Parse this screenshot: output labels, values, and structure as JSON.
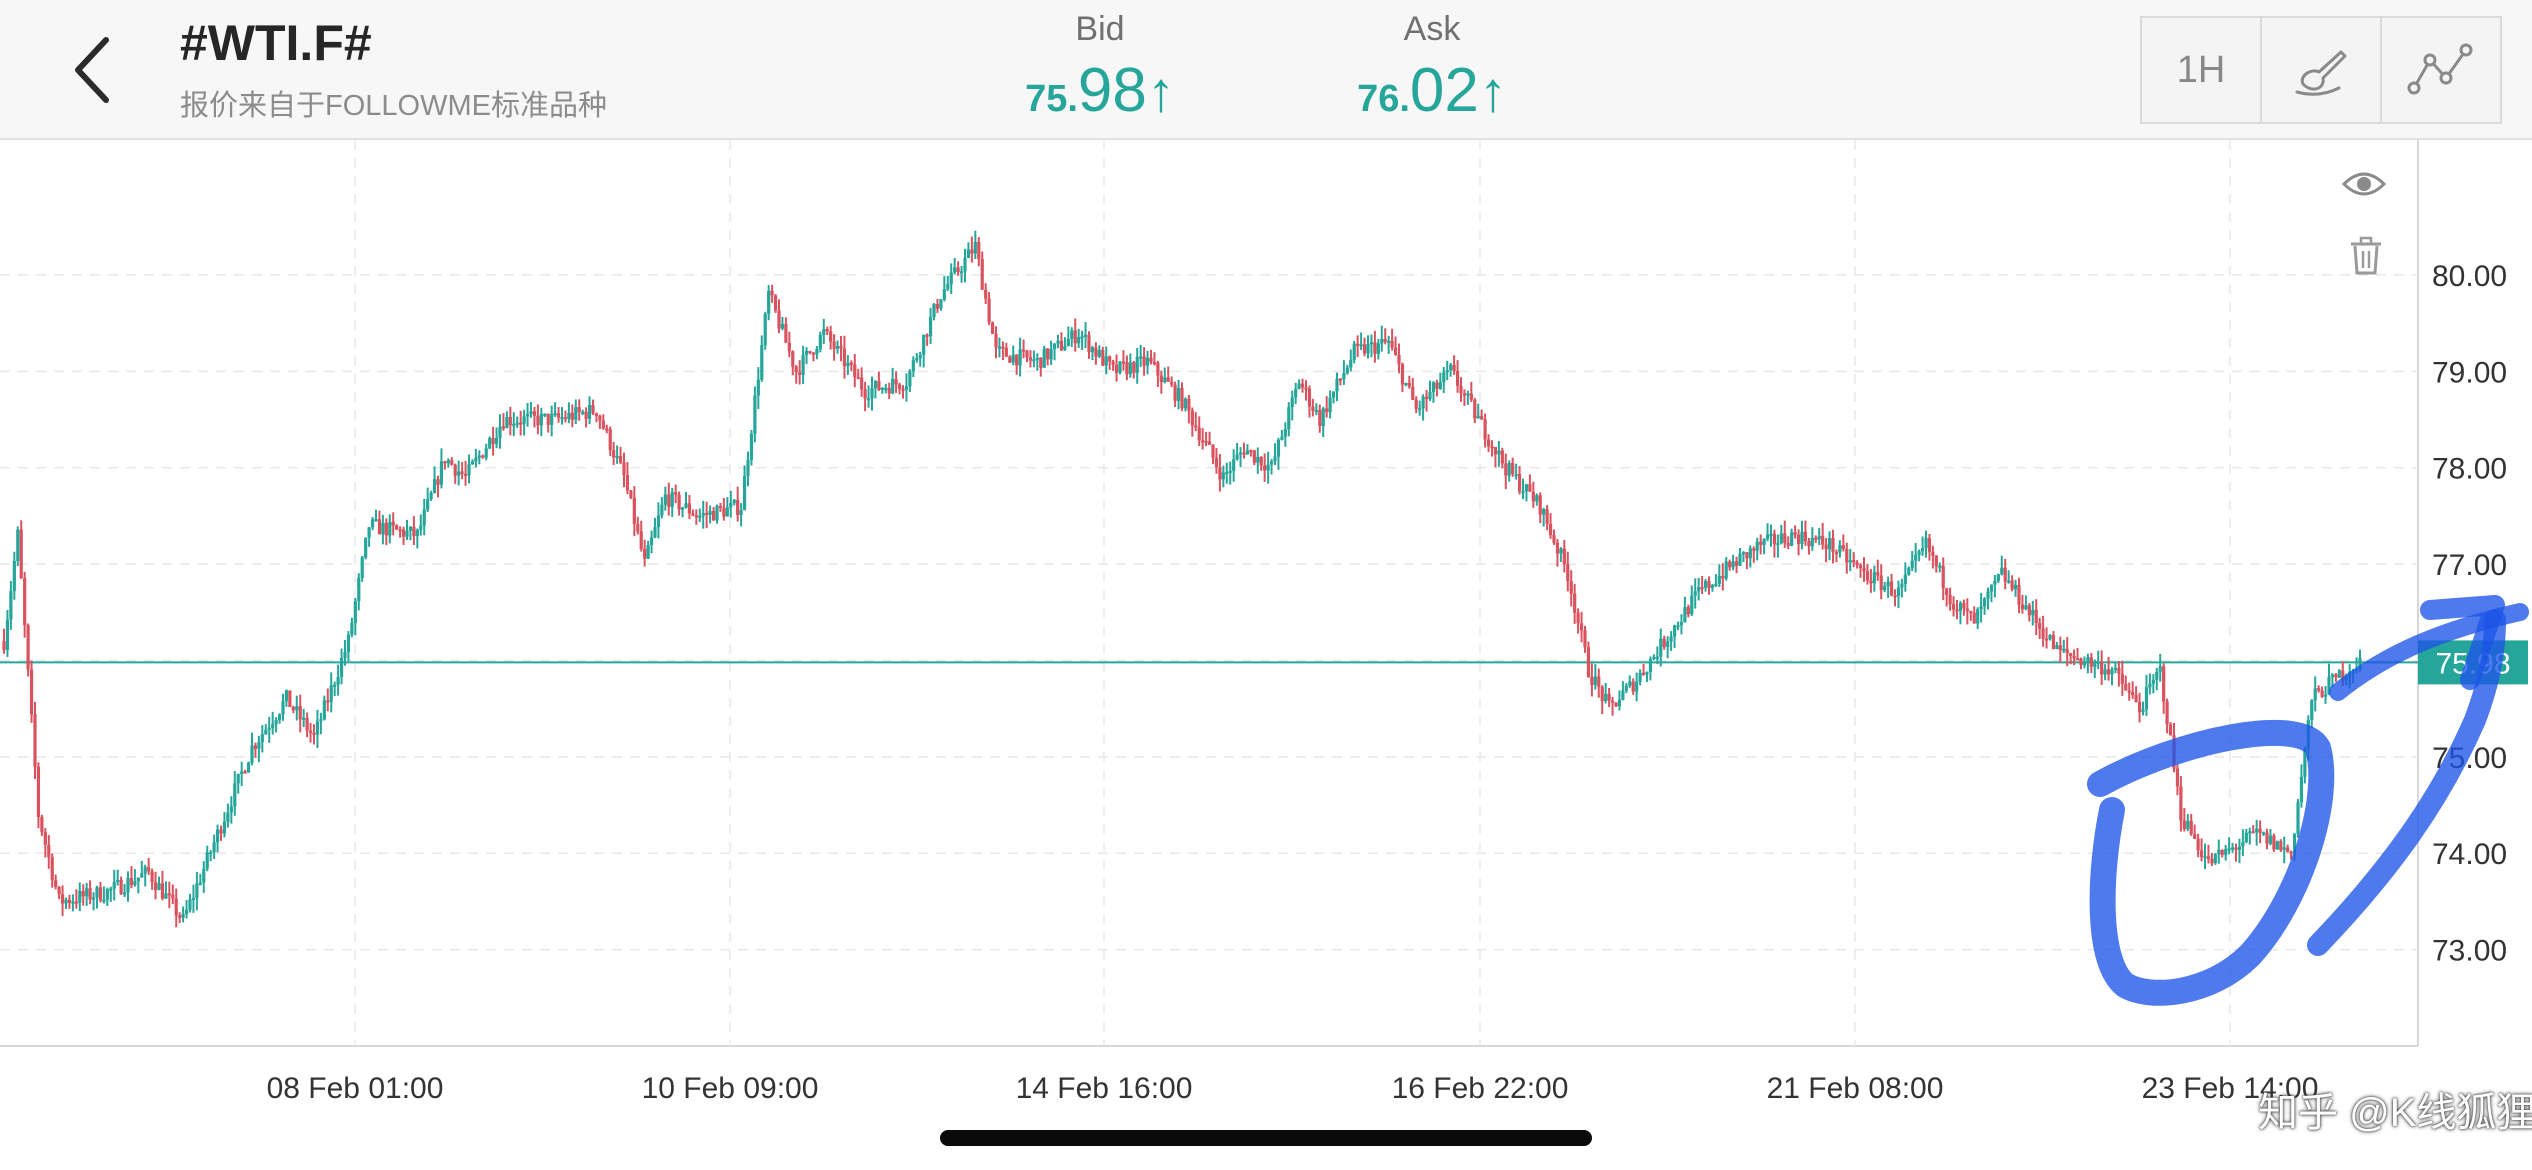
{
  "header": {
    "symbol": "#WTI.F#",
    "subtitle": "报价来自于FOLLOWME标准品种",
    "bid": {
      "label": "Bid",
      "small": "75.",
      "large": "98",
      "arrow": "↑"
    },
    "ask": {
      "label": "Ask",
      "small": "76.",
      "large": "02",
      "arrow": "↑"
    },
    "timeframe": "1H"
  },
  "icons": {
    "back": "chevron-left-icon",
    "draw": "brush-icon",
    "indicator": "line-chart-icon",
    "eye": "eye-icon",
    "trash": "trash-icon"
  },
  "colors": {
    "up": "#26a69a",
    "down": "#d9525e",
    "price_line": "#26a69a",
    "annotation": "#1d55e8"
  },
  "chart_data": {
    "type": "candlestick",
    "ylim": [
      72.0,
      81.4
    ],
    "y_ticks": [
      "73.00",
      "74.00",
      "75.00",
      "76.00",
      "77.00",
      "78.00",
      "79.00",
      "80.00"
    ],
    "x_ticks": [
      "08 Feb 01:00",
      "10 Feb 09:00",
      "14 Feb 16:00",
      "16 Feb 22:00",
      "21 Feb 08:00",
      "23 Feb 14:00"
    ],
    "current_price": 75.98,
    "current_price_label": "75.98",
    "anchors": [
      [
        0,
        76.2
      ],
      [
        4,
        77.3
      ],
      [
        10,
        74.4
      ],
      [
        16,
        73.5
      ],
      [
        30,
        73.6
      ],
      [
        42,
        73.8
      ],
      [
        52,
        73.3
      ],
      [
        62,
        74.2
      ],
      [
        72,
        75.1
      ],
      [
        82,
        75.6
      ],
      [
        90,
        75.2
      ],
      [
        100,
        76.2
      ],
      [
        106,
        77.4
      ],
      [
        120,
        77.3
      ],
      [
        128,
        78.1
      ],
      [
        134,
        77.9
      ],
      [
        145,
        78.5
      ],
      [
        160,
        78.5
      ],
      [
        172,
        78.6
      ],
      [
        180,
        77.9
      ],
      [
        186,
        77.0
      ],
      [
        192,
        77.7
      ],
      [
        202,
        77.5
      ],
      [
        214,
        77.6
      ],
      [
        222,
        79.8
      ],
      [
        230,
        79.0
      ],
      [
        238,
        79.4
      ],
      [
        250,
        78.8
      ],
      [
        262,
        78.9
      ],
      [
        272,
        79.8
      ],
      [
        282,
        80.3
      ],
      [
        288,
        79.2
      ],
      [
        300,
        79.1
      ],
      [
        312,
        79.4
      ],
      [
        322,
        79.0
      ],
      [
        332,
        79.1
      ],
      [
        342,
        78.7
      ],
      [
        354,
        77.9
      ],
      [
        360,
        78.2
      ],
      [
        368,
        78.0
      ],
      [
        376,
        78.9
      ],
      [
        382,
        78.5
      ],
      [
        392,
        79.2
      ],
      [
        402,
        79.3
      ],
      [
        410,
        78.6
      ],
      [
        420,
        79.0
      ],
      [
        428,
        78.5
      ],
      [
        436,
        78.0
      ],
      [
        446,
        77.6
      ],
      [
        454,
        76.9
      ],
      [
        460,
        75.9
      ],
      [
        466,
        75.5
      ],
      [
        474,
        75.8
      ],
      [
        482,
        76.2
      ],
      [
        492,
        76.7
      ],
      [
        502,
        77.0
      ],
      [
        510,
        77.2
      ],
      [
        520,
        77.3
      ],
      [
        530,
        77.2
      ],
      [
        540,
        76.9
      ],
      [
        550,
        76.7
      ],
      [
        558,
        77.2
      ],
      [
        566,
        76.6
      ],
      [
        572,
        76.4
      ],
      [
        580,
        76.9
      ],
      [
        588,
        76.5
      ],
      [
        596,
        76.1
      ],
      [
        604,
        76.0
      ],
      [
        612,
        75.9
      ],
      [
        620,
        75.5
      ],
      [
        626,
        75.9
      ],
      [
        632,
        74.4
      ],
      [
        640,
        73.9
      ],
      [
        654,
        74.2
      ],
      [
        664,
        74.0
      ],
      [
        670,
        75.6
      ],
      [
        680,
        75.9
      ],
      [
        684,
        75.98
      ]
    ]
  },
  "watermark": "知乎 @K线狐狸"
}
